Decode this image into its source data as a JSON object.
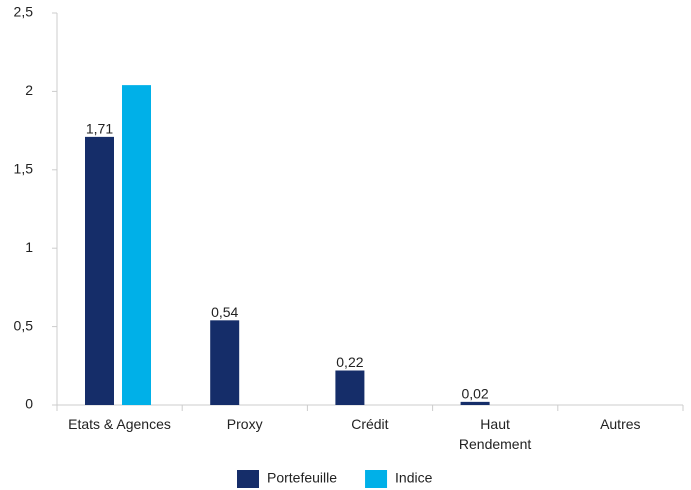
{
  "chart_data": {
    "type": "bar",
    "categories": [
      "Etats & Agences",
      "Proxy",
      "Crédit",
      "Haut\nRendement",
      "Autres"
    ],
    "series": [
      {
        "name": "Portefeuille",
        "color": "#152d69",
        "values": [
          1.71,
          0.54,
          0.22,
          0.02,
          null
        ],
        "value_labels": [
          "1,71",
          "0,54",
          "0,22",
          "0,02",
          null
        ]
      },
      {
        "name": "Indice",
        "color": "#00b0e8",
        "values": [
          2.04,
          null,
          null,
          null,
          null
        ]
      }
    ],
    "ylim": [
      0,
      2.5
    ],
    "yticks": [
      0,
      {
        "value": 0.5,
        "label": "0,5"
      },
      1,
      {
        "value": 1.5,
        "label": "1,5"
      },
      2,
      {
        "value": 2.5,
        "label": "2,5"
      }
    ],
    "legend": "bottom"
  }
}
